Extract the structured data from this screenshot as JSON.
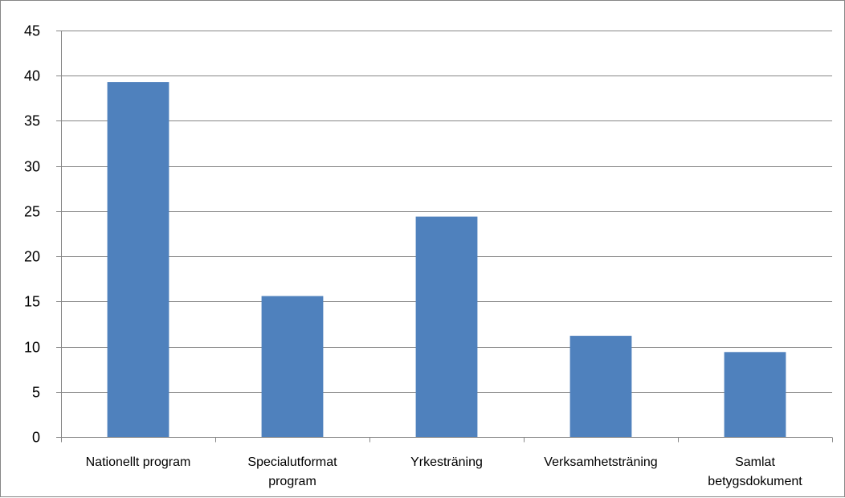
{
  "chart_data": {
    "type": "bar",
    "title": "",
    "xlabel": "",
    "ylabel": "",
    "categories": [
      [
        "Nationellt program"
      ],
      [
        "Specialutformat",
        "program"
      ],
      [
        "Yrkesträning"
      ],
      [
        "Verksamhetsträning"
      ],
      [
        "Samlat",
        "betygsdokument"
      ]
    ],
    "values": [
      39.3,
      15.6,
      24.4,
      11.2,
      9.4
    ],
    "ylim": [
      0,
      45
    ],
    "yticks": [
      0,
      5,
      10,
      15,
      20,
      25,
      30,
      35,
      40,
      45
    ],
    "grid": true,
    "legend": "none",
    "colors": {
      "bar": "#4F81BD",
      "grid": "#868686",
      "axis": "#868686"
    }
  }
}
